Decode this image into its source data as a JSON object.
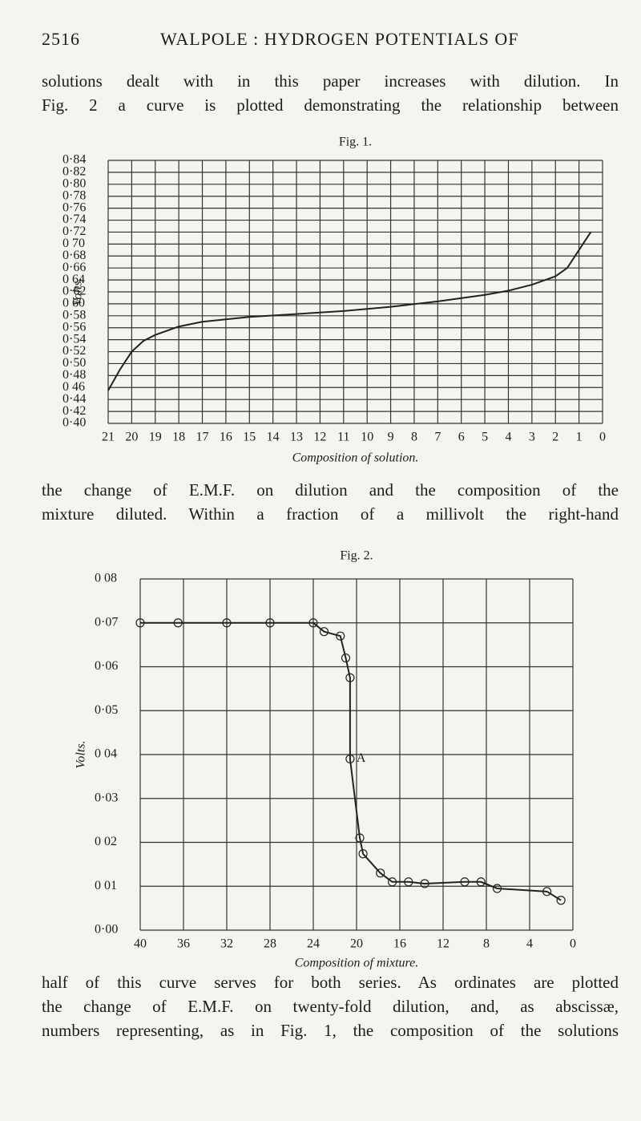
{
  "header": {
    "page": "2516",
    "running_title": "WALPOLE : HYDROGEN POTENTIALS OF"
  },
  "paragraphs": [
    [
      "solutions dealt with in this paper increases with dilution.  In",
      "Fig. 2 a curve is plotted demonstrating the relationship between"
    ],
    [
      "the change of E.M.F. on dilution and the composition of the",
      "mixture diluted.  Within a fraction of a millivolt the right-hand"
    ],
    [
      "half of this curve serves for both series.  As ordinates are plotted",
      "the change of E.M.F. on twenty-fold dilution, and, as abscissæ,",
      "numbers representing, as in Fig. 1, the composition of the solutions"
    ]
  ],
  "chart_data": [
    {
      "type": "line",
      "title": "Fig. 1.",
      "y_label": "Volts.",
      "x_label": "Composition of solution.",
      "grid": true,
      "color": "#222222",
      "markers": false,
      "xlim": [
        21,
        0
      ],
      "xticks": [
        21,
        20,
        19,
        18,
        17,
        16,
        15,
        14,
        13,
        12,
        11,
        10,
        9,
        8,
        7,
        6,
        5,
        4,
        3,
        2,
        1,
        0
      ],
      "ylim": [
        0.4,
        0.84
      ],
      "yticks": [
        {
          "value": 0.84,
          "label": "0·84"
        },
        {
          "value": 0.82,
          "label": "0·82"
        },
        {
          "value": 0.8,
          "label": "0·80"
        },
        {
          "value": 0.78,
          "label": "0·78"
        },
        {
          "value": 0.76,
          "label": "0·76"
        },
        {
          "value": 0.74,
          "label": "0·74"
        },
        {
          "value": 0.72,
          "label": "0·72"
        },
        {
          "value": 0.7,
          "label": "0 70"
        },
        {
          "value": 0.68,
          "label": "0·68"
        },
        {
          "value": 0.66,
          "label": "0·66"
        },
        {
          "value": 0.64,
          "label": "0 64"
        },
        {
          "value": 0.62,
          "label": "0·62"
        },
        {
          "value": 0.6,
          "label": "0 60"
        },
        {
          "value": 0.58,
          "label": "0·58"
        },
        {
          "value": 0.56,
          "label": "0·56"
        },
        {
          "value": 0.54,
          "label": "0·54"
        },
        {
          "value": 0.52,
          "label": "0·52"
        },
        {
          "value": 0.5,
          "label": "0·50"
        },
        {
          "value": 0.48,
          "label": "0·48"
        },
        {
          "value": 0.46,
          "label": "0 46"
        },
        {
          "value": 0.44,
          "label": "0·44"
        },
        {
          "value": 0.42,
          "label": "0·42"
        },
        {
          "value": 0.4,
          "label": "0·40"
        }
      ],
      "x": [
        21,
        20.5,
        20,
        19.5,
        19,
        18,
        17,
        16,
        15,
        13,
        11,
        9,
        7,
        5,
        4,
        3,
        2,
        1.5,
        1,
        0.5
      ],
      "values": [
        0.455,
        0.49,
        0.52,
        0.538,
        0.548,
        0.562,
        0.57,
        0.574,
        0.578,
        0.583,
        0.588,
        0.595,
        0.604,
        0.615,
        0.622,
        0.632,
        0.646,
        0.66,
        0.69,
        0.72
      ]
    },
    {
      "type": "line",
      "title": "Fig. 2.",
      "y_label": "Volts.",
      "x_label": "Composition of mixture.",
      "grid": true,
      "color": "#222222",
      "markers": true,
      "xlim": [
        40,
        0
      ],
      "xticks": [
        40,
        36,
        32,
        28,
        24,
        20,
        16,
        12,
        8,
        4,
        0
      ],
      "ylim": [
        0.0,
        0.08
      ],
      "yticks": [
        {
          "value": 0.08,
          "label": "0 08"
        },
        {
          "value": 0.07,
          "label": "0·07"
        },
        {
          "value": 0.06,
          "label": "0·06"
        },
        {
          "value": 0.05,
          "label": "0·05"
        },
        {
          "value": 0.04,
          "label": "0 04"
        },
        {
          "value": 0.03,
          "label": "0·03"
        },
        {
          "value": 0.02,
          "label": "0 02"
        },
        {
          "value": 0.01,
          "label": "0 01"
        },
        {
          "value": 0.0,
          "label": "0·00"
        }
      ],
      "x": [
        40,
        36.5,
        32,
        28,
        24,
        23,
        21.5,
        21,
        20.6,
        20.6,
        19.7,
        19.4,
        17.8,
        16.7,
        15.2,
        13.7,
        10,
        8.5,
        7,
        2.4,
        1.1
      ],
      "values": [
        0.07,
        0.07,
        0.07,
        0.07,
        0.07,
        0.068,
        0.067,
        0.062,
        0.0575,
        0.039,
        0.021,
        0.0174,
        0.013,
        0.011,
        0.011,
        0.0106,
        0.011,
        0.011,
        0.0095,
        0.0088,
        0.0068
      ],
      "annotations": [
        {
          "text": "A",
          "x": 20.6,
          "y": 0.039
        }
      ]
    }
  ]
}
